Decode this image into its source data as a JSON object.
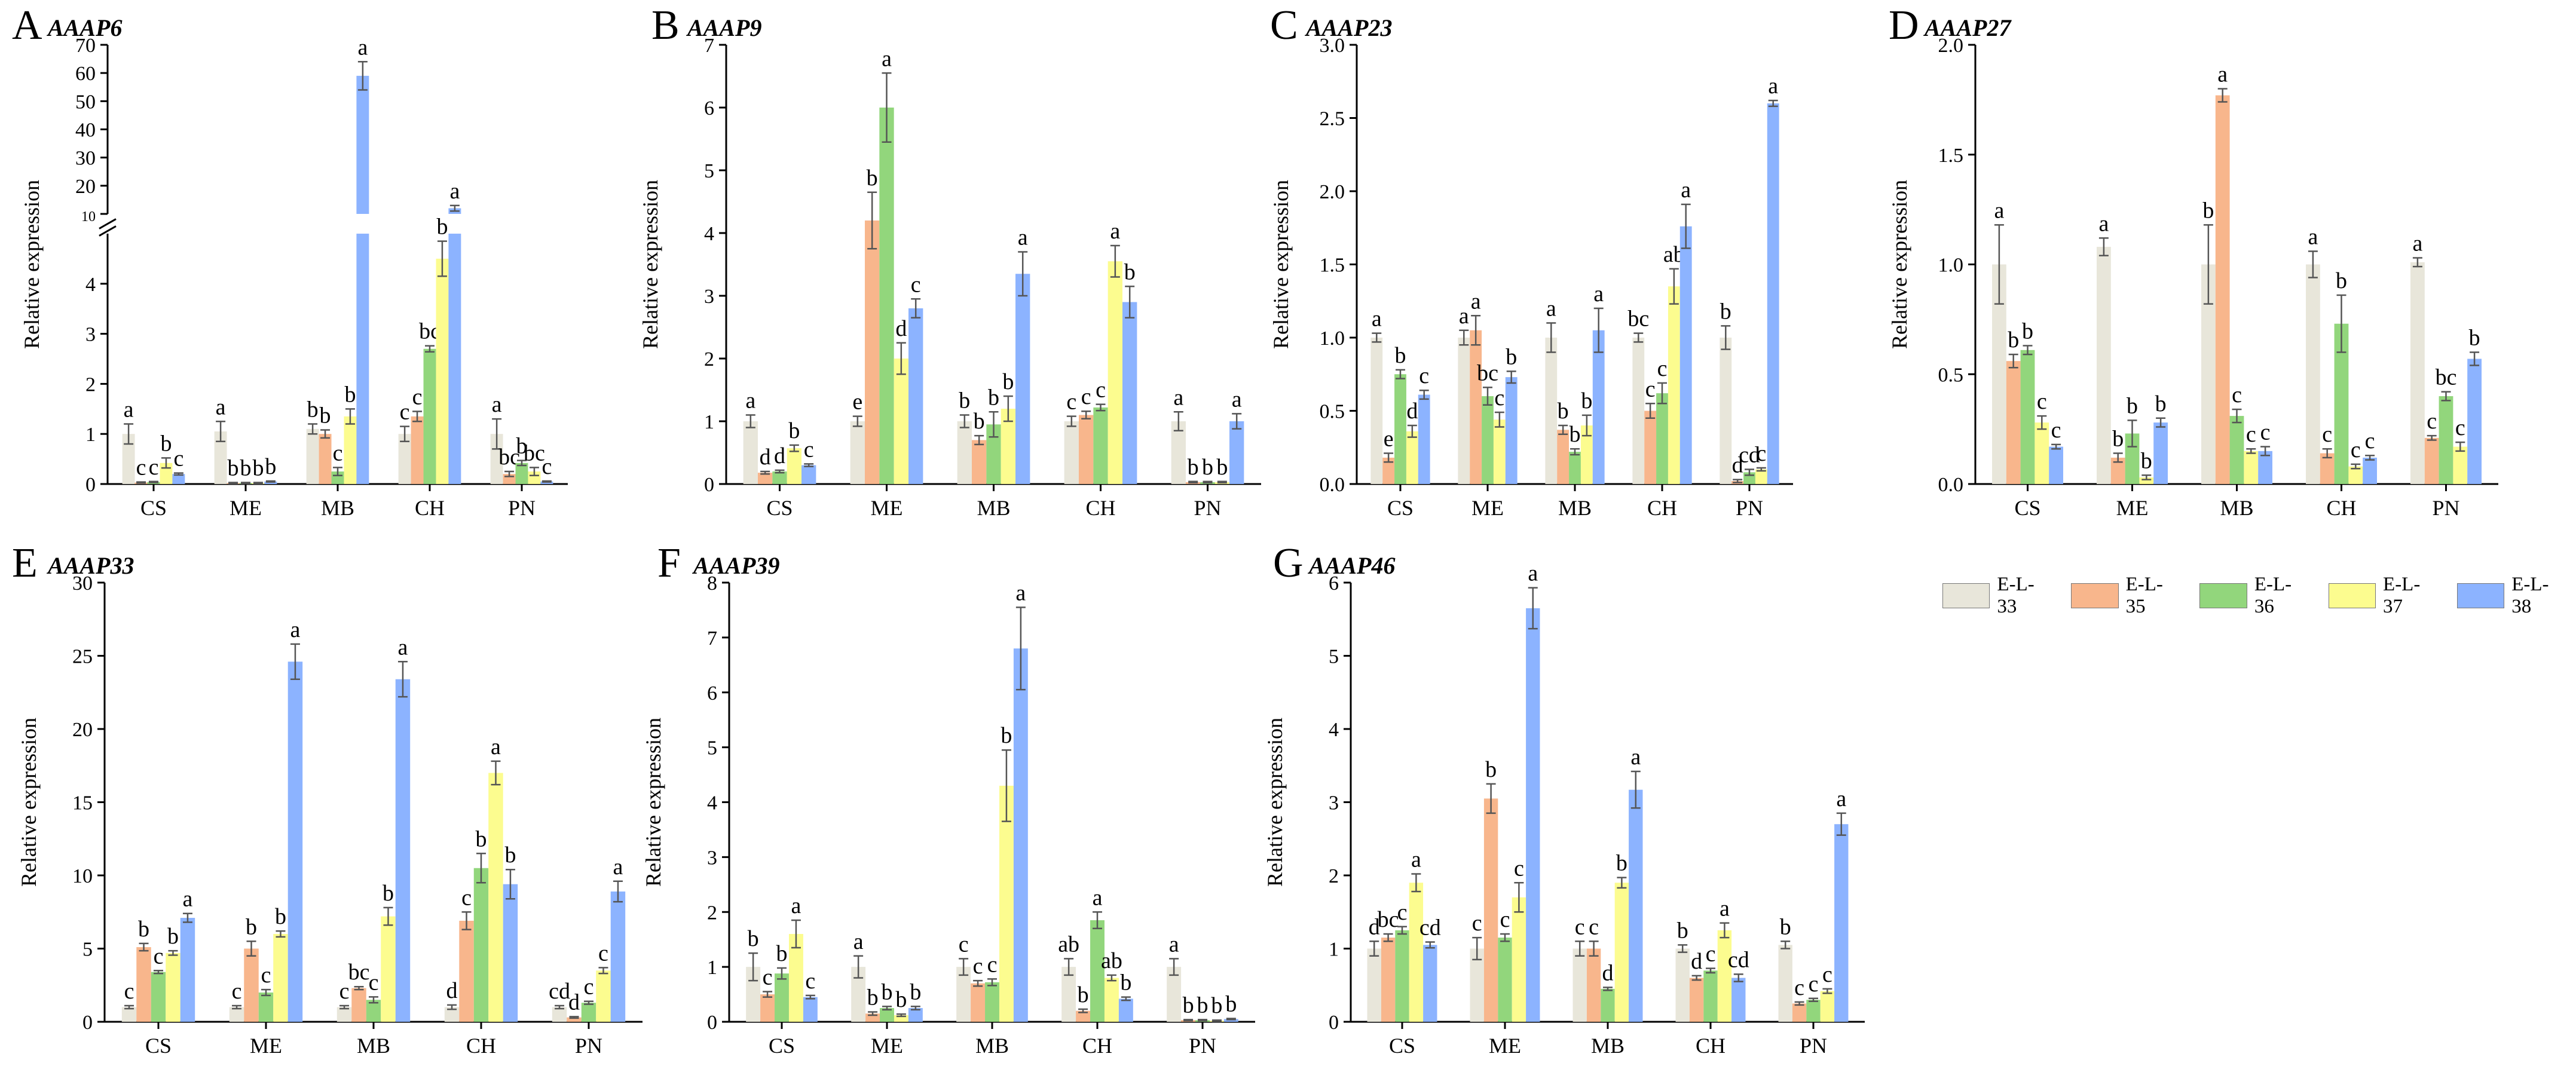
{
  "y_axis_label": "Relative expression",
  "legend": [
    {
      "label": "E-L-33",
      "color": "#e8e6da"
    },
    {
      "label": "E-L-35",
      "color": "#f8b68c"
    },
    {
      "label": "E-L-36",
      "color": "#92d67c"
    },
    {
      "label": "E-L-37",
      "color": "#fcfc8f"
    },
    {
      "label": "E-L-38",
      "color": "#8cb3ff"
    }
  ],
  "chart_data": [
    {
      "type": "bar",
      "panel": "A",
      "title": "AAAP6",
      "categories": [
        "CS",
        "ME",
        "MB",
        "CH",
        "PN"
      ],
      "ylabel": "Relative expression",
      "axis_break": {
        "lower_max": 5,
        "upper_min": 10,
        "upper_max": 70
      },
      "lower_ticks": [
        "0",
        "1",
        "2",
        "3",
        "4"
      ],
      "upper_ticks": [
        "20",
        "30",
        "40",
        "50",
        "60",
        "70"
      ],
      "upper_ticks_small": [
        "10"
      ],
      "series": [
        {
          "name": "E-L-33",
          "values": [
            1.0,
            1.05,
            1.1,
            1.0,
            1.0
          ],
          "errors": [
            0.2,
            0.2,
            0.1,
            0.15,
            0.3
          ],
          "letters": [
            "a",
            "a",
            "b",
            "c",
            "a"
          ]
        },
        {
          "name": "E-L-35",
          "values": [
            0.03,
            0.02,
            1.0,
            1.35,
            0.2
          ],
          "errors": [
            0.01,
            0.01,
            0.08,
            0.1,
            0.05
          ],
          "letters": [
            "c",
            "b",
            "b",
            "c",
            "bc"
          ]
        },
        {
          "name": "E-L-36",
          "values": [
            0.04,
            0.02,
            0.25,
            2.7,
            0.42
          ],
          "errors": [
            0.01,
            0.01,
            0.08,
            0.06,
            0.05
          ],
          "letters": [
            "c",
            "b",
            "c",
            "bc",
            "b"
          ]
        },
        {
          "name": "E-L-37",
          "values": [
            0.42,
            0.02,
            1.35,
            4.5,
            0.25
          ],
          "errors": [
            0.1,
            0.01,
            0.15,
            0.35,
            0.08
          ],
          "letters": [
            "b",
            "b",
            "b",
            "b",
            "bc"
          ]
        },
        {
          "name": "E-L-38",
          "values": [
            0.2,
            0.05,
            59.0,
            12.0,
            0.05
          ],
          "errors": [
            0.02,
            0.01,
            5.0,
            1.0,
            0.01
          ],
          "letters": [
            "c",
            "b",
            "a",
            "a",
            "c"
          ]
        }
      ]
    },
    {
      "type": "bar",
      "panel": "B",
      "title": "AAAP9",
      "categories": [
        "CS",
        "ME",
        "MB",
        "CH",
        "PN"
      ],
      "ylabel": "Relative expression",
      "ylim": [
        0,
        7
      ],
      "yticks": [
        0,
        1,
        2,
        3,
        4,
        5,
        6,
        7
      ],
      "series": [
        {
          "name": "E-L-33",
          "values": [
            1.0,
            1.0,
            1.0,
            1.0,
            1.0
          ],
          "errors": [
            0.1,
            0.08,
            0.1,
            0.08,
            0.15
          ],
          "letters": [
            "a",
            "e",
            "b",
            "c",
            "a"
          ]
        },
        {
          "name": "E-L-35",
          "values": [
            0.18,
            4.2,
            0.7,
            1.1,
            0.03
          ],
          "errors": [
            0.02,
            0.45,
            0.07,
            0.06,
            0.01
          ],
          "letters": [
            "d",
            "b",
            "b",
            "c",
            "b"
          ]
        },
        {
          "name": "E-L-36",
          "values": [
            0.2,
            6.0,
            0.95,
            1.22,
            0.03
          ],
          "errors": [
            0.02,
            0.55,
            0.2,
            0.05,
            0.01
          ],
          "letters": [
            "d",
            "a",
            "b",
            "c",
            "b"
          ]
        },
        {
          "name": "E-L-37",
          "values": [
            0.57,
            2.0,
            1.2,
            3.55,
            0.03
          ],
          "errors": [
            0.05,
            0.25,
            0.2,
            0.25,
            0.01
          ],
          "letters": [
            "b",
            "d",
            "b",
            "a",
            "b"
          ]
        },
        {
          "name": "E-L-38",
          "values": [
            0.3,
            2.8,
            3.35,
            2.9,
            1.0
          ],
          "errors": [
            0.02,
            0.15,
            0.35,
            0.25,
            0.12
          ],
          "letters": [
            "c",
            "c",
            "a",
            "b",
            "a"
          ]
        }
      ]
    },
    {
      "type": "bar",
      "panel": "C",
      "title": "AAAP23",
      "categories": [
        "CS",
        "ME",
        "MB",
        "CH",
        "PN"
      ],
      "ylabel": "Relative expression",
      "ylim": [
        0,
        3.0
      ],
      "yticks": [
        "0.0",
        "0.5",
        "1.0",
        "1.5",
        "2.0",
        "2.5",
        "3.0"
      ],
      "series": [
        {
          "name": "E-L-33",
          "values": [
            1.0,
            1.0,
            1.0,
            1.0,
            1.0
          ],
          "errors": [
            0.03,
            0.05,
            0.1,
            0.03,
            0.08
          ],
          "letters": [
            "a",
            "a",
            "a",
            "bc",
            "b"
          ]
        },
        {
          "name": "E-L-35",
          "values": [
            0.18,
            1.05,
            0.37,
            0.5,
            0.02
          ],
          "errors": [
            0.03,
            0.1,
            0.03,
            0.05,
            0.01
          ],
          "letters": [
            "e",
            "a",
            "b",
            "c",
            "d"
          ]
        },
        {
          "name": "E-L-36",
          "values": [
            0.75,
            0.6,
            0.22,
            0.62,
            0.08
          ],
          "errors": [
            0.03,
            0.06,
            0.02,
            0.07,
            0.02
          ],
          "letters": [
            "b",
            "bc",
            "b",
            "c",
            "cd"
          ]
        },
        {
          "name": "E-L-37",
          "values": [
            0.36,
            0.44,
            0.4,
            1.35,
            0.1
          ],
          "errors": [
            0.04,
            0.05,
            0.07,
            0.12,
            0.01
          ],
          "letters": [
            "d",
            "c",
            "b",
            "ab",
            "c"
          ]
        },
        {
          "name": "E-L-38",
          "values": [
            0.61,
            0.73,
            1.05,
            1.76,
            2.6
          ],
          "errors": [
            0.03,
            0.04,
            0.15,
            0.15,
            0.02
          ],
          "letters": [
            "c",
            "b",
            "a",
            "a",
            "a"
          ]
        }
      ]
    },
    {
      "type": "bar",
      "panel": "D",
      "title": "AAAP27",
      "categories": [
        "CS",
        "ME",
        "MB",
        "CH",
        "PN"
      ],
      "ylabel": "Relative expression",
      "ylim": [
        0,
        2.0
      ],
      "yticks": [
        "0.0",
        "0.5",
        "1.0",
        "1.5",
        "2.0"
      ],
      "series": [
        {
          "name": "E-L-33",
          "values": [
            1.0,
            1.08,
            1.0,
            1.0,
            1.01
          ],
          "errors": [
            0.18,
            0.04,
            0.18,
            0.06,
            0.02
          ],
          "letters": [
            "a",
            "a",
            "b",
            "a",
            "a"
          ]
        },
        {
          "name": "E-L-35",
          "values": [
            0.56,
            0.12,
            1.77,
            0.14,
            0.21
          ],
          "errors": [
            0.03,
            0.02,
            0.03,
            0.02,
            0.01
          ],
          "letters": [
            "b",
            "b",
            "a",
            "c",
            "c"
          ]
        },
        {
          "name": "E-L-36",
          "values": [
            0.61,
            0.23,
            0.31,
            0.73,
            0.4
          ],
          "errors": [
            0.02,
            0.06,
            0.03,
            0.13,
            0.02
          ],
          "letters": [
            "b",
            "b",
            "c",
            "b",
            "bc"
          ]
        },
        {
          "name": "E-L-37",
          "values": [
            0.28,
            0.03,
            0.15,
            0.08,
            0.17
          ],
          "errors": [
            0.03,
            0.01,
            0.01,
            0.01,
            0.02
          ],
          "letters": [
            "c",
            "b",
            "c",
            "c",
            "c"
          ]
        },
        {
          "name": "E-L-38",
          "values": [
            0.17,
            0.28,
            0.15,
            0.12,
            0.57
          ],
          "errors": [
            0.01,
            0.02,
            0.02,
            0.01,
            0.03
          ],
          "letters": [
            "c",
            "b",
            "c",
            "c",
            "b"
          ]
        }
      ]
    },
    {
      "type": "bar",
      "panel": "E",
      "title": "AAAP33",
      "categories": [
        "CS",
        "ME",
        "MB",
        "CH",
        "PN"
      ],
      "ylabel": "Relative expression",
      "ylim": [
        0,
        30
      ],
      "yticks": [
        0,
        5,
        10,
        15,
        20,
        25,
        30
      ],
      "series": [
        {
          "name": "E-L-33",
          "values": [
            1.0,
            1.0,
            1.0,
            1.0,
            1.0
          ],
          "errors": [
            0.1,
            0.1,
            0.1,
            0.15,
            0.1
          ],
          "letters": [
            "c",
            "c",
            "c",
            "d",
            "cd"
          ]
        },
        {
          "name": "E-L-35",
          "values": [
            5.1,
            5.0,
            2.3,
            6.9,
            0.3
          ],
          "errors": [
            0.25,
            0.5,
            0.1,
            0.6,
            0.05
          ],
          "letters": [
            "b",
            "b",
            "bc",
            "c",
            "d"
          ]
        },
        {
          "name": "E-L-36",
          "values": [
            3.4,
            2.0,
            1.5,
            10.5,
            1.3
          ],
          "errors": [
            0.1,
            0.2,
            0.2,
            1.0,
            0.1
          ],
          "letters": [
            "c",
            "c",
            "c",
            "b",
            "c"
          ]
        },
        {
          "name": "E-L-37",
          "values": [
            4.7,
            6.0,
            7.2,
            17.0,
            3.5
          ],
          "errors": [
            0.15,
            0.2,
            0.6,
            0.8,
            0.2
          ],
          "letters": [
            "b",
            "b",
            "b",
            "a",
            "c"
          ]
        },
        {
          "name": "E-L-38",
          "values": [
            7.1,
            24.6,
            23.4,
            9.4,
            8.9
          ],
          "errors": [
            0.3,
            1.2,
            1.2,
            1.0,
            0.7
          ],
          "letters": [
            "a",
            "a",
            "a",
            "b",
            "a"
          ]
        }
      ]
    },
    {
      "type": "bar",
      "panel": "F",
      "title": "AAAP39",
      "categories": [
        "CS",
        "ME",
        "MB",
        "CH",
        "PN"
      ],
      "ylabel": "Relative expression",
      "ylim": [
        0,
        8
      ],
      "yticks": [
        0,
        1,
        2,
        3,
        4,
        5,
        6,
        7,
        8
      ],
      "series": [
        {
          "name": "E-L-33",
          "values": [
            1.0,
            1.0,
            1.0,
            1.0,
            1.0
          ],
          "errors": [
            0.25,
            0.2,
            0.15,
            0.15,
            0.15
          ],
          "letters": [
            "b",
            "a",
            "c",
            "ab",
            "a"
          ]
        },
        {
          "name": "E-L-35",
          "values": [
            0.5,
            0.15,
            0.7,
            0.2,
            0.03
          ],
          "errors": [
            0.05,
            0.03,
            0.05,
            0.03,
            0.01
          ],
          "letters": [
            "c",
            "b",
            "c",
            "b",
            "b"
          ]
        },
        {
          "name": "E-L-36",
          "values": [
            0.88,
            0.25,
            0.72,
            1.85,
            0.03
          ],
          "errors": [
            0.1,
            0.03,
            0.06,
            0.15,
            0.01
          ],
          "letters": [
            "b",
            "b",
            "c",
            "a",
            "b"
          ]
        },
        {
          "name": "E-L-37",
          "values": [
            1.6,
            0.12,
            4.3,
            0.8,
            0.02
          ],
          "errors": [
            0.25,
            0.02,
            0.65,
            0.05,
            0.01
          ],
          "letters": [
            "a",
            "b",
            "b",
            "ab",
            "b"
          ]
        },
        {
          "name": "E-L-38",
          "values": [
            0.45,
            0.25,
            6.8,
            0.42,
            0.05
          ],
          "errors": [
            0.03,
            0.03,
            0.75,
            0.03,
            0.01
          ],
          "letters": [
            "c",
            "b",
            "a",
            "b",
            "b"
          ]
        }
      ]
    },
    {
      "type": "bar",
      "panel": "G",
      "title": "AAAP46",
      "categories": [
        "CS",
        "ME",
        "MB",
        "CH",
        "PN"
      ],
      "ylabel": "Relative expression",
      "ylim": [
        0,
        6
      ],
      "yticks": [
        0,
        1,
        2,
        3,
        4,
        5,
        6
      ],
      "series": [
        {
          "name": "E-L-33",
          "values": [
            1.0,
            1.0,
            1.0,
            1.0,
            1.05
          ],
          "errors": [
            0.1,
            0.15,
            0.1,
            0.05,
            0.05
          ],
          "letters": [
            "d",
            "c",
            "c",
            "b",
            "b"
          ]
        },
        {
          "name": "E-L-35",
          "values": [
            1.15,
            3.05,
            1.0,
            0.6,
            0.25
          ],
          "errors": [
            0.05,
            0.2,
            0.1,
            0.03,
            0.02
          ],
          "letters": [
            "bc",
            "b",
            "c",
            "d",
            "c"
          ]
        },
        {
          "name": "E-L-36",
          "values": [
            1.25,
            1.15,
            0.45,
            0.7,
            0.3
          ],
          "errors": [
            0.05,
            0.05,
            0.02,
            0.03,
            0.02
          ],
          "letters": [
            "c",
            "c",
            "d",
            "c",
            "c"
          ]
        },
        {
          "name": "E-L-37",
          "values": [
            1.9,
            1.7,
            1.9,
            1.25,
            0.42
          ],
          "errors": [
            0.12,
            0.2,
            0.07,
            0.1,
            0.03
          ],
          "letters": [
            "a",
            "c",
            "b",
            "a",
            "c"
          ]
        },
        {
          "name": "E-L-38",
          "values": [
            1.05,
            5.65,
            3.17,
            0.6,
            2.7
          ],
          "errors": [
            0.04,
            0.28,
            0.25,
            0.05,
            0.15
          ],
          "letters": [
            "cd",
            "a",
            "a",
            "cd",
            "a"
          ]
        }
      ]
    }
  ]
}
